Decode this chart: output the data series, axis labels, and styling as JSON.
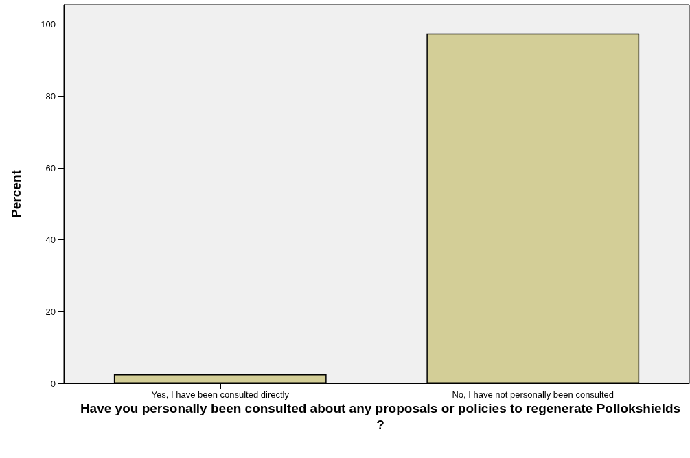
{
  "chart_data": {
    "type": "bar",
    "xlabel": "Have you personally been consulted about any proposals or policies to regenerate Pollokshields?",
    "ylabel": "Percent",
    "categories": [
      "Yes, I have been consulted directly",
      "No, I have not personally been consulted"
    ],
    "values": [
      2.5,
      97.5
    ],
    "color": "#d3ce97",
    "ylim": [
      0,
      105.5
    ],
    "yticks": [
      0,
      20,
      40,
      60,
      80,
      100
    ],
    "grid": false
  }
}
